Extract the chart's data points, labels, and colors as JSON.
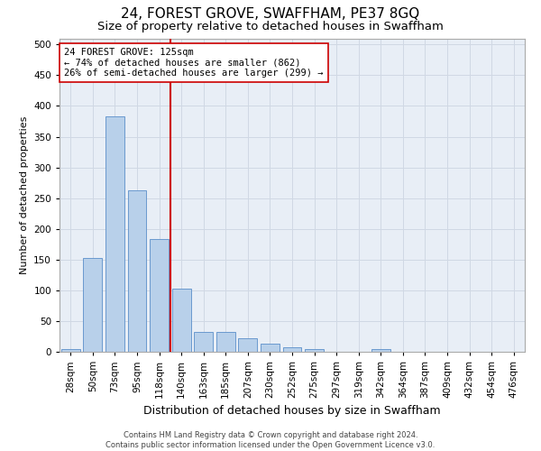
{
  "title": "24, FOREST GROVE, SWAFFHAM, PE37 8GQ",
  "subtitle": "Size of property relative to detached houses in Swaffham",
  "xlabel": "Distribution of detached houses by size in Swaffham",
  "ylabel": "Number of detached properties",
  "categories": [
    "28sqm",
    "50sqm",
    "73sqm",
    "95sqm",
    "118sqm",
    "140sqm",
    "163sqm",
    "185sqm",
    "207sqm",
    "230sqm",
    "252sqm",
    "275sqm",
    "297sqm",
    "319sqm",
    "342sqm",
    "364sqm",
    "387sqm",
    "409sqm",
    "432sqm",
    "454sqm",
    "476sqm"
  ],
  "values": [
    5,
    152,
    383,
    263,
    183,
    103,
    33,
    33,
    22,
    13,
    8,
    5,
    0,
    0,
    5,
    0,
    0,
    0,
    0,
    0,
    0
  ],
  "bar_color": "#b8d0ea",
  "bar_edge_color": "#5b8fc9",
  "vline_color": "#cc0000",
  "annotation_text": "24 FOREST GROVE: 125sqm\n← 74% of detached houses are smaller (862)\n26% of semi-detached houses are larger (299) →",
  "annotation_box_color": "#ffffff",
  "annotation_box_edge_color": "#cc0000",
  "ylim": [
    0,
    510
  ],
  "yticks": [
    0,
    50,
    100,
    150,
    200,
    250,
    300,
    350,
    400,
    450,
    500
  ],
  "grid_color": "#d0d8e4",
  "bg_color": "#e8eef6",
  "footer": "Contains HM Land Registry data © Crown copyright and database right 2024.\nContains public sector information licensed under the Open Government Licence v3.0.",
  "title_fontsize": 11,
  "subtitle_fontsize": 9.5,
  "xlabel_fontsize": 9,
  "ylabel_fontsize": 8,
  "tick_fontsize": 7.5,
  "annot_fontsize": 7.5
}
